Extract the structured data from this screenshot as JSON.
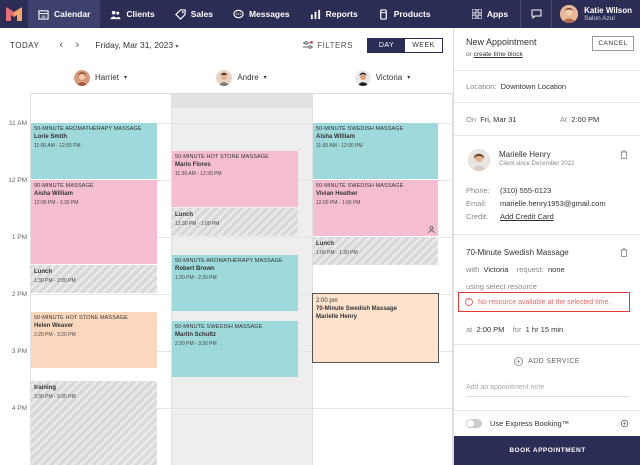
{
  "nav": {
    "items": [
      {
        "label": "Calendar",
        "icon": "calendar-icon"
      },
      {
        "label": "Clients",
        "icon": "clients-icon"
      },
      {
        "label": "Sales",
        "icon": "sales-icon"
      },
      {
        "label": "Messages",
        "icon": "messages-icon"
      },
      {
        "label": "Reports",
        "icon": "reports-icon"
      },
      {
        "label": "Products",
        "icon": "products-icon"
      }
    ],
    "apps_label": "Apps",
    "user_name": "Katie Wilson",
    "user_business": "Salon Azul",
    "colors": {
      "nav_bg": "#2b2d54",
      "active_bg": "#3e416e"
    }
  },
  "toolbar": {
    "today": "TODAY",
    "date": "Friday, Mar 31, 2023",
    "filters": "FILTERS",
    "view_day": "DAY",
    "view_week": "WEEK"
  },
  "staff": [
    {
      "name": "Harriet"
    },
    {
      "name": "Andre"
    },
    {
      "name": "Victoria"
    }
  ],
  "times": [
    "11 AM",
    "12 PM",
    "1 PM",
    "2 PM",
    "3 PM",
    "4 PM"
  ],
  "appointments": {
    "h1": {
      "service": "50-MINUTE AROMATHERAPY MASSAGE",
      "client": "Lorie Smith",
      "time": "11:00 AM - 12:00 PM"
    },
    "h2": {
      "service": "90-MINUTE MASSAGE",
      "client": "Aisha William",
      "time": "12:00 PM - 1:30 PM"
    },
    "h3": {
      "service": "Lunch",
      "time": "1:30 PM - 2:00 PM"
    },
    "h4": {
      "service": "50-MINUTE HOT STONE MASSAGE",
      "client": "Helen Weaver",
      "time": "2:20 PM - 3:20 PM"
    },
    "h5": {
      "service": "training",
      "time": "3:30 PM - 5:05 PM"
    },
    "a1": {
      "service": "50-MINUTE HOT STONE MASSAGE",
      "client": "Mario Flores",
      "time": "11:30 AM - 12:30 PM"
    },
    "a2": {
      "service": "Lunch",
      "time": "12:30 PM - 1:00 PM"
    },
    "a3": {
      "service": "50-MINUTE AROMATHERAPY MASSAGE",
      "client": "Robert Brown",
      "time": "1:20 PM - 2:20 PM"
    },
    "a4": {
      "service": "50-MINUTE SWEDISH MASSAGE",
      "client": "Martin Schultz",
      "time": "2:30 PM - 3:30 PM"
    },
    "v1": {
      "service": "50-MINUTE SWEDISH MASSAGE",
      "client": "Aisha William",
      "time": "11:00 AM - 12:00 PM"
    },
    "v2": {
      "service": "50-MINUTE SWEDISH MASSAGE",
      "client": "Vivian Heather",
      "time": "12:00 PM - 1:00 PM"
    },
    "v3": {
      "service": "Lunch",
      "time": "1:00 PM - 1:30 PM"
    },
    "v4": {
      "time": "2:00 pm",
      "service": "70-Minute Swedish Massage",
      "client": "Marielle Henry"
    }
  },
  "panel": {
    "title": "New Appointment",
    "or": "or",
    "create_time_block": "create time block",
    "cancel": "CANCEL",
    "location_label": "Location:",
    "location": "Downtown Location",
    "on_label": "On",
    "date": "Fri, Mar 31",
    "at_label": "At",
    "time": "2:00 PM",
    "client": {
      "name": "Marielle Henry",
      "since": "Client since December 2022",
      "phone_label": "Phone:",
      "phone": "(310) 555-0123",
      "email_label": "Email:",
      "email": "marielle.henry1953@gmail.com",
      "credit_label": "Credit:",
      "credit": "Add Credit Card"
    },
    "service": {
      "title": "70-Minute Swedish Massage",
      "with_label": "with",
      "staff": "Victoria",
      "request_label": "request:",
      "request": "none",
      "using": "using select resource",
      "error": "No resource available at the selected time.",
      "at_label": "at",
      "time": "2:00 PM",
      "for_label": "for",
      "duration": "1 hr 15 min"
    },
    "add_service": "ADD SERVICE",
    "note_placeholder": "Add an appointment note",
    "express": "Use Express Booking™",
    "book": "BOOK APPOINTMENT"
  }
}
